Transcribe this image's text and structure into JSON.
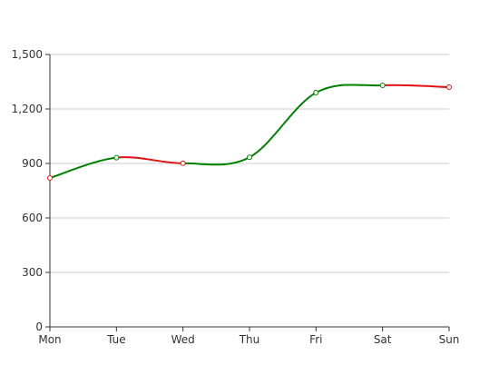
{
  "chart_data": {
    "type": "line",
    "categories": [
      "Mon",
      "Tue",
      "Wed",
      "Thu",
      "Fri",
      "Sat",
      "Sun"
    ],
    "values": [
      820,
      932,
      901,
      934,
      1290,
      1330,
      1320
    ],
    "ylim": [
      0,
      1500
    ],
    "yticks": [
      0,
      300,
      600,
      900,
      1200,
      1500
    ],
    "ytick_labels": [
      "0",
      "300",
      "600",
      "900",
      "1,200",
      "1,500"
    ],
    "grid": true,
    "smooth": true,
    "colors": {
      "increase": "#008000",
      "decrease": "#e01010",
      "grid": "#cccccc",
      "axis": "#333333"
    }
  }
}
